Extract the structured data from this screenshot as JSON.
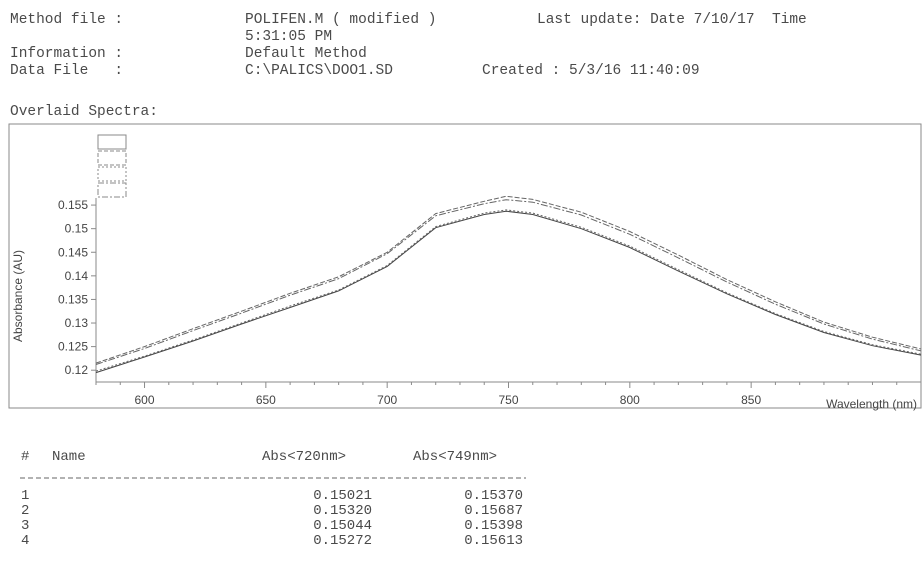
{
  "header": {
    "method_label": "Method file :",
    "method_value": "POLIFEN.M ( modified )",
    "last_update": "Last update: Date 7/10/17  Time",
    "time_value": "5:31:05 PM",
    "info_label": "Information :",
    "info_value": "Default Method",
    "datafile_label": "Data File   :",
    "datafile_value": "C:\\PALICS\\DOO1.SD",
    "created": "Created : 5/3/16 11:40:09"
  },
  "section_title": "Overlaid Spectra:",
  "chart_data": {
    "type": "line",
    "xlabel": "Wavelength (nm)",
    "ylabel": "Absorbance (AU)",
    "xlim": [
      580,
      920
    ],
    "ylim": [
      0.1175,
      0.1565
    ],
    "x_ticks": [
      600,
      650,
      700,
      750,
      800,
      850
    ],
    "y_ticks": [
      0.12,
      0.125,
      0.13,
      0.135,
      0.14,
      0.145,
      0.15,
      0.155
    ],
    "y_tick_labels": [
      "0.12",
      "0.125",
      "0.13",
      "0.135",
      "0.14",
      "0.145",
      "0.15",
      "0.155"
    ],
    "x": [
      580,
      600,
      620,
      640,
      660,
      680,
      700,
      720,
      740,
      749,
      760,
      780,
      800,
      820,
      840,
      860,
      880,
      900,
      920
    ],
    "series": [
      {
        "values": [
          0.1195,
          0.1228,
          0.1262,
          0.1298,
          0.1333,
          0.1368,
          0.142,
          0.15021,
          0.153,
          0.1537,
          0.153,
          0.15,
          0.146,
          0.141,
          0.1362,
          0.1318,
          0.128,
          0.1252,
          0.1232
        ]
      },
      {
        "values": [
          0.1215,
          0.125,
          0.1288,
          0.1325,
          0.1363,
          0.1398,
          0.145,
          0.1532,
          0.1558,
          0.15687,
          0.1562,
          0.1535,
          0.1494,
          0.1444,
          0.1392,
          0.1345,
          0.1302,
          0.127,
          0.1245
        ]
      },
      {
        "values": [
          0.1198,
          0.123,
          0.1264,
          0.13,
          0.1336,
          0.137,
          0.1422,
          0.15044,
          0.1533,
          0.15398,
          0.1533,
          0.1503,
          0.1463,
          0.1413,
          0.1364,
          0.132,
          0.1282,
          0.1254,
          0.1234
        ]
      },
      {
        "values": [
          0.1212,
          0.1246,
          0.1284,
          0.1321,
          0.1359,
          0.1394,
          0.1447,
          0.15272,
          0.1553,
          0.15613,
          0.1556,
          0.1529,
          0.1488,
          0.1438,
          0.1387,
          0.134,
          0.1298,
          0.1266,
          0.1241
        ]
      }
    ],
    "grid": false,
    "legend": "top-left (unlabeled)"
  },
  "table": {
    "columns": [
      "#",
      "Name",
      "Abs<720nm>",
      "Abs<749nm>"
    ],
    "rows": [
      {
        "n": "1",
        "name": "",
        "a720": "0.15021",
        "a749": "0.15370"
      },
      {
        "n": "2",
        "name": "",
        "a720": "0.15320",
        "a749": "0.15687"
      },
      {
        "n": "3",
        "name": "",
        "a720": "0.15044",
        "a749": "0.15398"
      },
      {
        "n": "4",
        "name": "",
        "a720": "0.15272",
        "a749": "0.15613"
      }
    ]
  },
  "colors": {
    "text": "#4a4a4a",
    "line": "#555555",
    "frame": "#888888"
  }
}
